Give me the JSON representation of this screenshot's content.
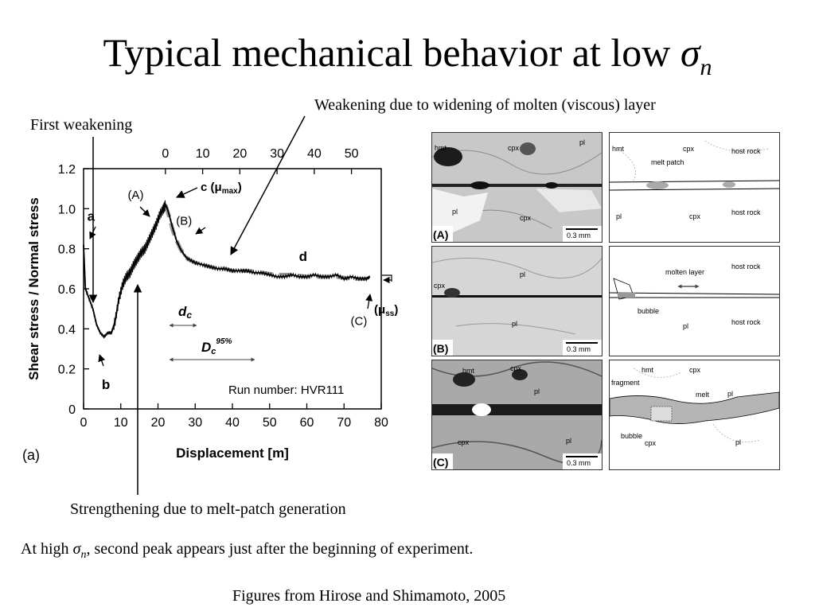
{
  "title": {
    "text": "Typical mechanical behavior at low ",
    "sigma": "σ",
    "sub": "n"
  },
  "annotations": {
    "first_weakening": "First weakening",
    "molten_layer_weakening": "Weakening due to widening of molten (viscous) layer",
    "melt_patch_strengthening": "Strengthening due to melt-patch generation",
    "high_sigma_prefix": "At high ",
    "high_sigma_sigma": "σ",
    "high_sigma_sub": "n",
    "high_sigma_suffix": ", second peak appears just after the beginning of experiment.",
    "source": "Figures from Hirose and Shimamoto, 2005"
  },
  "chart_data": {
    "type": "line",
    "panel_label": "(a)",
    "xlabel": "Displacement [m]",
    "ylabel": "Shear stress / Normal stress",
    "xlim": [
      0,
      80
    ],
    "ylim": [
      0,
      1.2
    ],
    "x_ticks": [
      "0",
      "10",
      "20",
      "30",
      "40",
      "50",
      "60",
      "70",
      "80"
    ],
    "y_ticks": [
      "0",
      "0.2",
      "0.4",
      "0.6",
      "0.8",
      "1.0",
      "1.2"
    ],
    "top_axis": {
      "offset": 22,
      "ticks": [
        "0",
        "10",
        "20",
        "30",
        "40",
        "50"
      ]
    },
    "series": [
      {
        "style": "measured",
        "color": "#000000",
        "x": [
          0,
          0.5,
          1.5,
          2.5,
          3.5,
          4.5,
          5.5,
          6.5,
          7.5,
          8.5,
          9.5,
          10.5,
          11.5,
          12.5,
          13.5,
          14.5,
          15.5,
          16.5,
          17.5,
          18.5,
          19.5,
          20.5,
          21.5,
          22,
          22.5,
          23,
          24,
          25,
          26,
          27,
          28,
          30,
          32,
          34,
          36,
          38,
          40,
          42,
          44,
          46,
          48,
          50,
          52,
          54,
          56,
          58,
          60,
          62,
          64,
          66,
          68,
          70,
          72,
          74,
          76,
          77
        ],
        "y": [
          0.82,
          0.6,
          0.55,
          0.5,
          0.42,
          0.38,
          0.36,
          0.38,
          0.38,
          0.44,
          0.55,
          0.62,
          0.66,
          0.68,
          0.72,
          0.75,
          0.78,
          0.8,
          0.84,
          0.88,
          0.92,
          0.97,
          1.0,
          1.02,
          1.0,
          0.97,
          0.9,
          0.84,
          0.8,
          0.77,
          0.75,
          0.73,
          0.72,
          0.71,
          0.7,
          0.7,
          0.69,
          0.69,
          0.69,
          0.68,
          0.68,
          0.67,
          0.66,
          0.66,
          0.67,
          0.66,
          0.66,
          0.67,
          0.66,
          0.66,
          0.67,
          0.65,
          0.66,
          0.65,
          0.65,
          0.66
        ]
      },
      {
        "style": "fit",
        "color": "#9a9a9a",
        "x": [
          22,
          23,
          24,
          25,
          26,
          27,
          28,
          30,
          32,
          34,
          36,
          38,
          40,
          44,
          48,
          52,
          56,
          60,
          64,
          68,
          72,
          76
        ],
        "y": [
          1.02,
          0.96,
          0.89,
          0.84,
          0.8,
          0.77,
          0.75,
          0.73,
          0.72,
          0.71,
          0.7,
          0.7,
          0.69,
          0.69,
          0.68,
          0.67,
          0.67,
          0.66,
          0.66,
          0.66,
          0.65,
          0.65
        ]
      }
    ],
    "point_labels": [
      {
        "text": "a",
        "x": 2,
        "y": 0.94
      },
      {
        "text": "b",
        "x": 6,
        "y": 0.1
      },
      {
        "text": "(A)",
        "x": 14,
        "y": 1.05
      },
      {
        "text": "(B)",
        "x": 27,
        "y": 0.92
      },
      {
        "text": "(C)",
        "x": 74,
        "y": 0.42
      },
      {
        "text": "d",
        "x": 59,
        "y": 0.74
      }
    ],
    "inline_labels": {
      "c": "c (",
      "mu": "μ",
      "mu_max": "max",
      "c_close": ")",
      "mu_ss_open": "(μ",
      "mu_ss": "ss",
      "mu_ss_close": ")",
      "dc": "d",
      "dc_sub": "c",
      "Dc": "D",
      "Dc_sub": "c",
      "Dc_sup": "95%",
      "run": "Run number: HVR111"
    }
  },
  "micrographs": {
    "rows": [
      {
        "label": "(A)",
        "scale": "0.3 mm",
        "photo_labels": [
          "hmt",
          "cpx",
          "pl",
          "pl",
          "cpx"
        ],
        "sketch_labels": [
          "hmt",
          "cpx",
          "host rock",
          "melt patch",
          "pl",
          "cpx",
          "host rock"
        ]
      },
      {
        "label": "(B)",
        "scale": "0.3 mm",
        "photo_labels": [
          "cpx",
          "pl",
          "pl"
        ],
        "sketch_labels": [
          "host rock",
          "molten layer",
          "bubble",
          "pl",
          "host rock"
        ]
      },
      {
        "label": "(C)",
        "scale": "0.3 mm",
        "photo_labels": [
          "hmt",
          "cpx",
          "pl",
          "cpx",
          "pl"
        ],
        "sketch_labels": [
          "hmt",
          "cpx",
          "fragment",
          "melt",
          "pl",
          "bubble",
          "cpx",
          "pl"
        ]
      }
    ]
  }
}
